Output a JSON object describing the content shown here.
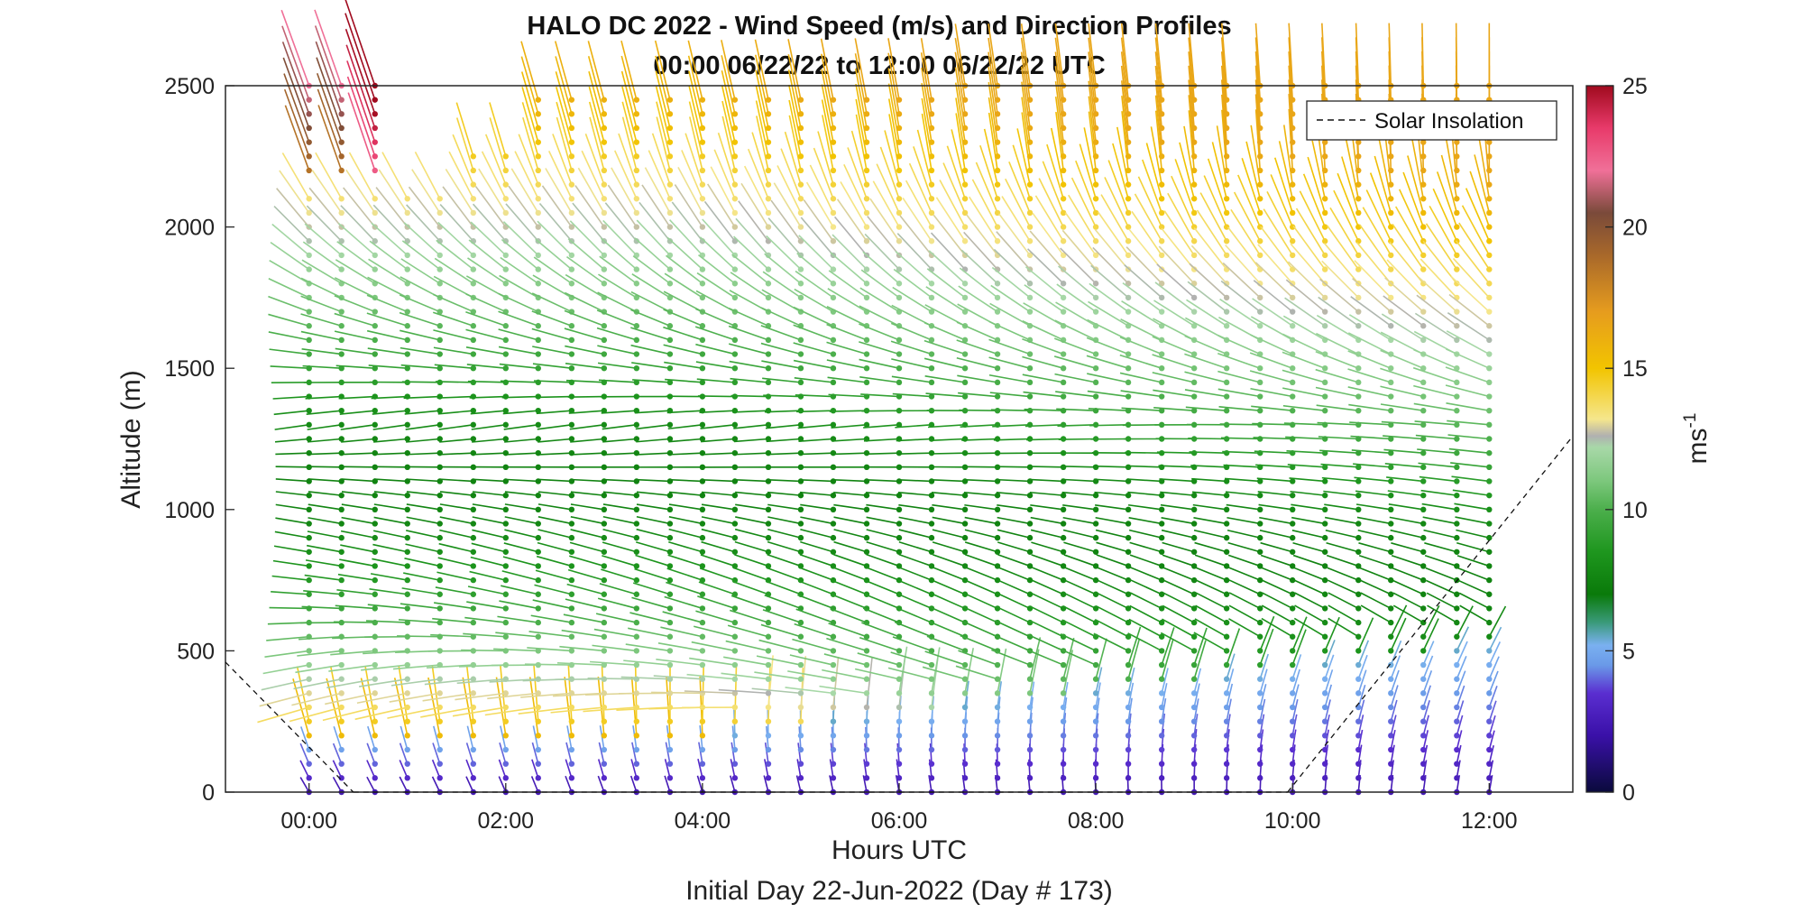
{
  "chart_data": {
    "type": "wind-barb-profile",
    "title": "HALO DC 2022 - Wind Speed (m/s) and Direction Profiles",
    "subtitle": "00:00 06/22/22 to 12:00 06/22/22  UTC",
    "xlabel": "Hours UTC",
    "xlabel2": "Initial Day 22-Jun-2022 (Day # 173)",
    "ylabel": "Altitude (m)",
    "xlim": [
      -0.85,
      12.85
    ],
    "ylim": [
      0,
      2500
    ],
    "x_ticks": [
      0,
      2,
      4,
      6,
      8,
      10,
      12
    ],
    "x_tick_labels": [
      "00:00",
      "02:00",
      "04:00",
      "06:00",
      "08:00",
      "10:00",
      "12:00"
    ],
    "y_ticks": [
      0,
      500,
      1000,
      1500,
      2000,
      2500
    ],
    "y_tick_labels": [
      "0",
      "500",
      "1000",
      "1500",
      "2000",
      "2500"
    ],
    "colorbar": {
      "label": "ms",
      "label_exponent": "-1",
      "range": [
        0,
        25
      ],
      "ticks": [
        0,
        5,
        10,
        15,
        20,
        25
      ],
      "tick_labels": [
        "0",
        "5",
        "10",
        "15",
        "20",
        "25"
      ],
      "stops": [
        {
          "v": 0,
          "c": "#0a0a3c"
        },
        {
          "v": 2,
          "c": "#3a10a8"
        },
        {
          "v": 3.5,
          "c": "#5a2ed0"
        },
        {
          "v": 4.5,
          "c": "#6a9ae8"
        },
        {
          "v": 5.2,
          "c": "#7ab0f0"
        },
        {
          "v": 6,
          "c": "#3a9a7a"
        },
        {
          "v": 7,
          "c": "#0a7a0a"
        },
        {
          "v": 8.5,
          "c": "#1e961e"
        },
        {
          "v": 10,
          "c": "#4caf4c"
        },
        {
          "v": 11,
          "c": "#7cc77c"
        },
        {
          "v": 12.2,
          "c": "#a8d8a8"
        },
        {
          "v": 12.6,
          "c": "#b0b0b0"
        },
        {
          "v": 13.2,
          "c": "#f5e68c"
        },
        {
          "v": 15,
          "c": "#f2c400"
        },
        {
          "v": 17,
          "c": "#e69c1e"
        },
        {
          "v": 19,
          "c": "#a8682a"
        },
        {
          "v": 20.5,
          "c": "#7a4a3a"
        },
        {
          "v": 22,
          "c": "#f07098"
        },
        {
          "v": 23.5,
          "c": "#e83a6a"
        },
        {
          "v": 25,
          "c": "#a00a1e"
        }
      ]
    },
    "legend": {
      "label": "Solar Insolation",
      "position": "top-right",
      "style": "dashed black line"
    },
    "solar_insolation_line": [
      {
        "x": -0.85,
        "y": 460
      },
      {
        "x": 0.45,
        "y": 0
      },
      {
        "x": 9.95,
        "y": 0
      },
      {
        "x": 12.85,
        "y": 1260
      }
    ],
    "profile_times_hours": [
      0.0,
      0.33,
      0.67,
      1.0,
      1.33,
      1.67,
      2.0,
      2.33,
      2.67,
      3.0,
      3.33,
      3.67,
      4.0,
      4.33,
      4.67,
      5.0,
      5.33,
      5.67,
      6.0,
      6.33,
      6.67,
      7.0,
      7.33,
      7.67,
      8.0,
      8.33,
      8.67,
      9.0,
      9.33,
      9.67,
      10.0,
      10.33,
      10.67,
      11.0,
      11.33,
      11.67,
      12.0
    ],
    "profile_altitude_step_m": 50,
    "wind_field_description": {
      "low_level_jet_core_m": [
        1050,
        1150
      ],
      "low_level_jet_speed_ms": 8,
      "surface_layer_speed_ms": [
        2,
        5
      ],
      "mid_layer_speed_ms": [
        9,
        12
      ],
      "upper_layer_speed_ms": [
        13,
        17
      ],
      "max_speed_ms": 25
    }
  }
}
